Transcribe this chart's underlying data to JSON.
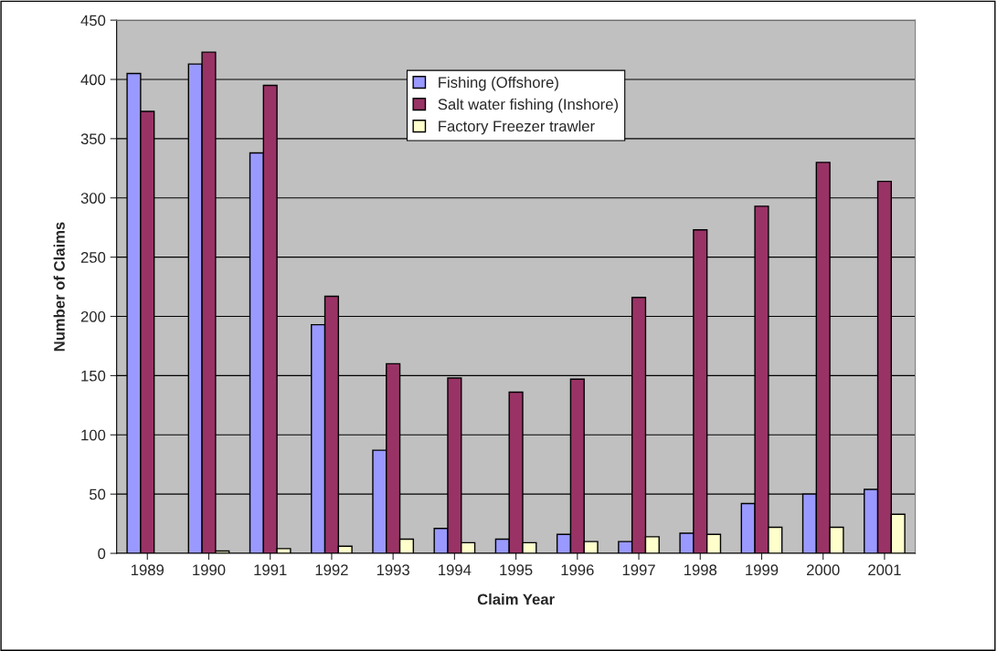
{
  "chart_data": {
    "type": "bar",
    "xlabel": "Claim Year",
    "ylabel": "Number of Claims",
    "categories": [
      "1989",
      "1990",
      "1991",
      "1992",
      "1993",
      "1994",
      "1995",
      "1996",
      "1997",
      "1998",
      "1999",
      "2000",
      "2001"
    ],
    "series": [
      {
        "name": "Fishing (Offshore)",
        "color": "#9999ff",
        "values": [
          405,
          413,
          338,
          193,
          87,
          21,
          12,
          16,
          10,
          17,
          42,
          50,
          54
        ]
      },
      {
        "name": "Salt water fishing (Inshore)",
        "color": "#993366",
        "values": [
          373,
          423,
          395,
          217,
          160,
          148,
          136,
          147,
          216,
          273,
          293,
          330,
          314
        ]
      },
      {
        "name": "Factory Freezer trawler",
        "color": "#ffffcc",
        "values": [
          null,
          2,
          4,
          6,
          12,
          9,
          9,
          10,
          14,
          16,
          22,
          22,
          33
        ]
      }
    ],
    "ylim": [
      0,
      450
    ],
    "yticks": [
      0,
      50,
      100,
      150,
      200,
      250,
      300,
      350,
      400,
      450
    ],
    "grid": "y",
    "legend": "top"
  }
}
